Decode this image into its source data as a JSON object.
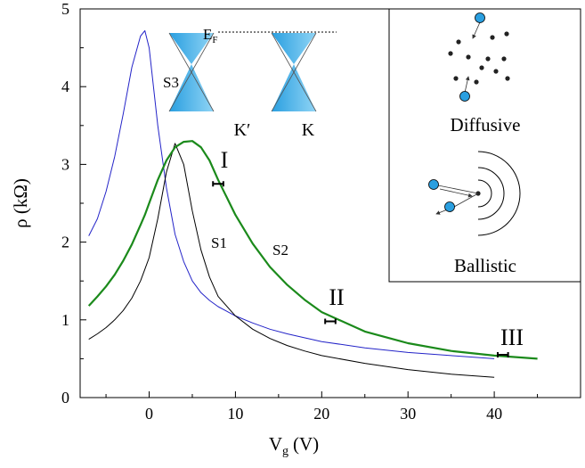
{
  "chart_data": {
    "type": "line",
    "xlabel": {
      "main": "V",
      "sub": "g",
      "unit": "(V)"
    },
    "ylabel": "ρ (kΩ)",
    "x": [
      -7,
      -6,
      -5,
      -4,
      -3,
      -2,
      -1,
      -0.5,
      0,
      1,
      2,
      3,
      4,
      5,
      6,
      7,
      8,
      10,
      12,
      14,
      16,
      18,
      20,
      25,
      30,
      35,
      40,
      45
    ],
    "series": [
      {
        "name": "S3",
        "color": "#2323c8",
        "width": 1,
        "values": [
          2.08,
          2.3,
          2.65,
          3.1,
          3.65,
          4.25,
          4.65,
          4.72,
          4.5,
          3.5,
          2.7,
          2.1,
          1.75,
          1.5,
          1.35,
          1.25,
          1.17,
          1.05,
          0.96,
          0.88,
          0.82,
          0.77,
          0.72,
          0.64,
          0.58,
          0.54,
          0.5,
          null
        ]
      },
      {
        "name": "S1",
        "color": "#000000",
        "width": 1,
        "values": [
          0.75,
          0.82,
          0.9,
          1.0,
          1.12,
          1.28,
          1.5,
          1.65,
          1.8,
          2.3,
          2.9,
          3.27,
          3.0,
          2.4,
          1.9,
          1.55,
          1.3,
          1.05,
          0.88,
          0.76,
          0.67,
          0.6,
          0.54,
          0.44,
          0.36,
          0.3,
          0.26,
          null
        ]
      },
      {
        "name": "S2",
        "color": "#1b8a1b",
        "width": 2.2,
        "values": [
          1.18,
          1.3,
          1.43,
          1.58,
          1.76,
          1.97,
          2.22,
          2.35,
          2.5,
          2.8,
          3.05,
          3.22,
          3.29,
          3.3,
          3.22,
          3.05,
          2.8,
          2.35,
          1.98,
          1.68,
          1.45,
          1.26,
          1.1,
          0.85,
          0.7,
          0.6,
          0.54,
          0.5
        ]
      }
    ],
    "error_bars": [
      {
        "label": "I",
        "x": 8,
        "y": 2.75,
        "xerr": 0.6
      },
      {
        "label": "II",
        "x": 21,
        "y": 0.98,
        "xerr": 0.6
      },
      {
        "label": "III",
        "x": 41,
        "y": 0.55,
        "xerr": 0.6
      }
    ],
    "xlim": [
      -8,
      50
    ],
    "ylim": [
      0,
      5
    ],
    "xticks": [
      0,
      10,
      20,
      30,
      40
    ],
    "xminorticks": [
      -5,
      5,
      15,
      25,
      35,
      45
    ],
    "yticks": [
      0,
      1,
      2,
      3,
      4,
      5
    ],
    "yminorticks": [
      0.5,
      1.5,
      2.5,
      3.5,
      4.5
    ],
    "insets": {
      "fermi_main": "E",
      "fermi_sub": "F",
      "valley_1": "K′",
      "valley_2": "K",
      "diffusive": "Diffusive",
      "ballistic": "Ballistic"
    }
  }
}
